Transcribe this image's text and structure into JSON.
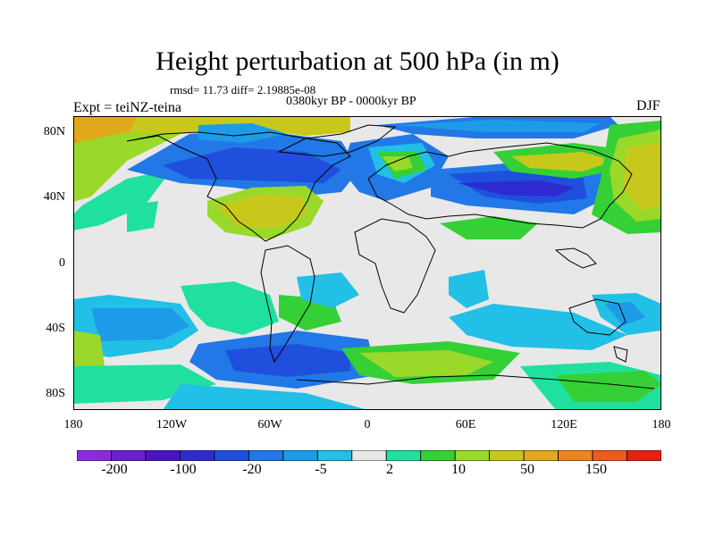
{
  "title": "Height perturbation at 500 hPa (in m)",
  "stats_text": "rmsd= 11.73 diff= 2.19885e-08",
  "period_text": "0380kyr BP - 0000kyr BP",
  "experiment_text": "Expt = teiNZ-teina",
  "season": "DJF",
  "axes": {
    "lat_labels": [
      "80N",
      "40N",
      "0",
      "40S",
      "80S"
    ],
    "lon_labels": [
      "180",
      "120W",
      "60W",
      "0",
      "60E",
      "120E",
      "180"
    ]
  },
  "colorbar": {
    "colors": [
      "#8a2be2",
      "#6a1fd0",
      "#4a14c4",
      "#2d2bd0",
      "#1f4fdc",
      "#2178e6",
      "#1e9be8",
      "#22bfe6",
      "#e8e8e8",
      "#20e0a0",
      "#35d035",
      "#9ad82a",
      "#c8c81c",
      "#e0a81a",
      "#ec8420",
      "#f05a1c",
      "#e82010"
    ],
    "labels": [
      "-200",
      "-100",
      "-20",
      "-5",
      "2",
      "10",
      "50",
      "150"
    ]
  }
}
